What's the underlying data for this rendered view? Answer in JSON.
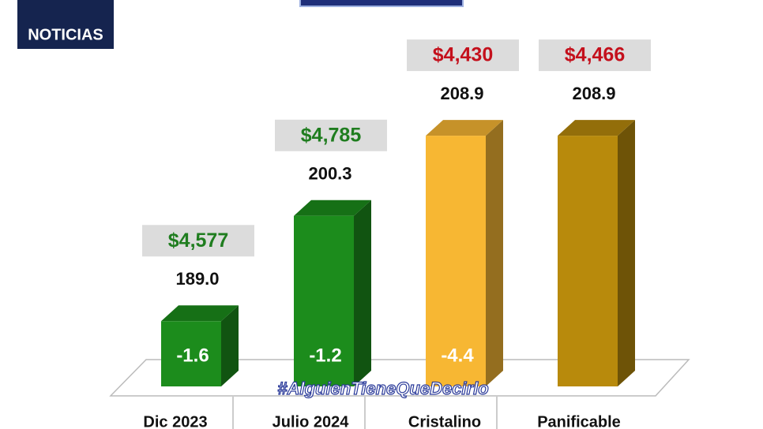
{
  "logo": "NOTICIAS",
  "chart_data": {
    "type": "bar",
    "categories": [
      "Dic 2023",
      "Julio 2024",
      "Cristalino",
      "Panificable"
    ],
    "values": [
      189.0,
      200.3,
      208.9,
      208.9
    ],
    "value_labels": [
      "189.0",
      "200.3",
      "208.9",
      "208.9"
    ],
    "colors": [
      "#1c8c1c",
      "#1c8c1c",
      "#f7b733",
      "#b88a0c"
    ],
    "price_labels": [
      "$4,577",
      "$4,785",
      "$4,430",
      "$4,466"
    ],
    "price_colors": [
      "#1f7d1f",
      "#1f7d1f",
      "#c4101c",
      "#c4101c"
    ],
    "change_labels": [
      "-1.6",
      "-1.2",
      "-4.4",
      null
    ],
    "hashtag": "#AlguienTieneQueDecirlo",
    "ylim": [
      182,
      215
    ]
  }
}
